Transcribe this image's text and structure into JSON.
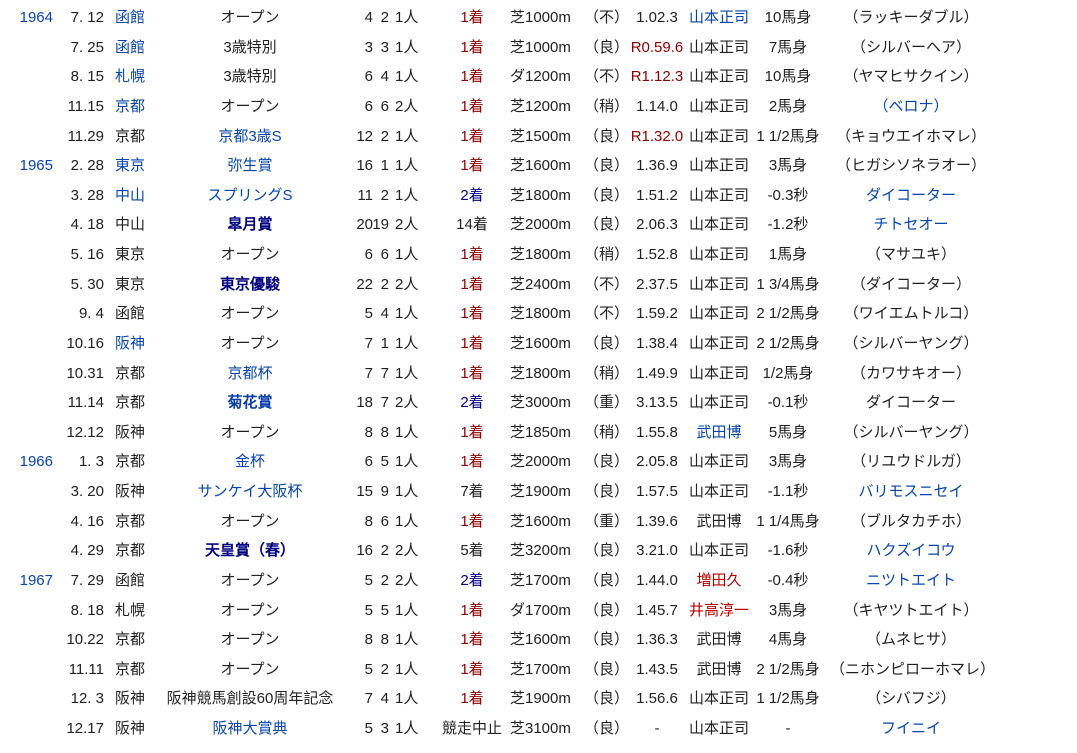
{
  "colors": {
    "link": "#0645ad",
    "redlink": "#ba0000",
    "win": "#8b0000",
    "second": "#000080",
    "record": "#8b0000",
    "g1": "#000080"
  },
  "rows": [
    {
      "year": "1964",
      "date": "7. 12",
      "venue": "函館",
      "race": "オープン",
      "field": "4",
      "gate": "2",
      "pop": "1人",
      "place": "1着",
      "surface": "芝1000m",
      "cond": "（不）",
      "time": "1.02.3",
      "jockey": "山本正司",
      "margin": "10馬身",
      "opponent": "（ラッキーダブル）",
      "links": [
        "year",
        "venue",
        "jockey"
      ]
    },
    {
      "year": "",
      "date": "7. 25",
      "venue": "函館",
      "race": "3歳特別",
      "field": "3",
      "gate": "3",
      "pop": "1人",
      "place": "1着",
      "surface": "芝1000m",
      "cond": "（良）",
      "time": "R0.59.6",
      "jockey": "山本正司",
      "margin": "7馬身",
      "opponent": "（シルバーヘア）",
      "links": [
        "venue"
      ],
      "record": true
    },
    {
      "year": "",
      "date": "8. 15",
      "venue": "札幌",
      "race": "3歳特別",
      "field": "6",
      "gate": "4",
      "pop": "1人",
      "place": "1着",
      "surface": "ダ1200m",
      "cond": "（不）",
      "time": "R1.12.3",
      "jockey": "山本正司",
      "margin": "10馬身",
      "opponent": "（ヤマヒサクイン）",
      "links": [
        "venue"
      ],
      "record": true
    },
    {
      "year": "",
      "date": "11.15",
      "venue": "京都",
      "race": "オープン",
      "field": "6",
      "gate": "6",
      "pop": "2人",
      "place": "1着",
      "surface": "芝1200m",
      "cond": "（稍）",
      "time": "1.14.0",
      "jockey": "山本正司",
      "margin": "2馬身",
      "opponent": "（ベロナ）",
      "links": [
        "venue",
        "opponent"
      ]
    },
    {
      "year": "",
      "date": "11.29",
      "venue": "京都",
      "race": "京都3歳S",
      "field": "12",
      "gate": "2",
      "pop": "1人",
      "place": "1着",
      "surface": "芝1500m",
      "cond": "（良）",
      "time": "R1.32.0",
      "jockey": "山本正司",
      "margin": "1 1/2馬身",
      "opponent": "（キョウエイホマレ）",
      "links": [
        "race"
      ],
      "record": true
    },
    {
      "year": "1965",
      "date": "2. 28",
      "venue": "東京",
      "race": "弥生賞",
      "field": "16",
      "gate": "1",
      "pop": "1人",
      "place": "1着",
      "surface": "芝1600m",
      "cond": "（良）",
      "time": "1.36.9",
      "jockey": "山本正司",
      "margin": "3馬身",
      "opponent": "（ヒガシソネラオー）",
      "links": [
        "year",
        "venue",
        "race"
      ]
    },
    {
      "year": "",
      "date": "3. 28",
      "venue": "中山",
      "race": "スプリングS",
      "field": "11",
      "gate": "2",
      "pop": "1人",
      "place": "2着",
      "surface": "芝1800m",
      "cond": "（良）",
      "time": "1.51.2",
      "jockey": "山本正司",
      "margin": "-0.3秒",
      "opponent": "ダイコーター",
      "links": [
        "venue",
        "race",
        "opponent"
      ]
    },
    {
      "year": "",
      "date": "4. 18",
      "venue": "中山",
      "race": "皐月賞",
      "field": "20",
      "gate": "19",
      "pop": "2人",
      "place": "14着",
      "surface": "芝2000m",
      "cond": "（良）",
      "time": "2.06.3",
      "jockey": "山本正司",
      "margin": "-1.2秒",
      "opponent": "チトセオー",
      "links": [
        "opponent"
      ],
      "g1": "navy"
    },
    {
      "year": "",
      "date": "5. 16",
      "venue": "東京",
      "race": "オープン",
      "field": "6",
      "gate": "6",
      "pop": "1人",
      "place": "1着",
      "surface": "芝1800m",
      "cond": "（稍）",
      "time": "1.52.8",
      "jockey": "山本正司",
      "margin": "1馬身",
      "opponent": "（マサユキ）",
      "links": []
    },
    {
      "year": "",
      "date": "5. 30",
      "venue": "東京",
      "race": "東京優駿",
      "field": "22",
      "gate": "2",
      "pop": "2人",
      "place": "1着",
      "surface": "芝2400m",
      "cond": "（不）",
      "time": "2.37.5",
      "jockey": "山本正司",
      "margin": "1 3/4馬身",
      "opponent": "（ダイコーター）",
      "links": [],
      "g1": "navy"
    },
    {
      "year": "",
      "date": "9.  4",
      "venue": "函館",
      "race": "オープン",
      "field": "5",
      "gate": "4",
      "pop": "1人",
      "place": "1着",
      "surface": "芝1800m",
      "cond": "（不）",
      "time": "1.59.2",
      "jockey": "山本正司",
      "margin": "2 1/2馬身",
      "opponent": "（ワイエムトルコ）",
      "links": []
    },
    {
      "year": "",
      "date": "10.16",
      "venue": "阪神",
      "race": "オープン",
      "field": "7",
      "gate": "1",
      "pop": "1人",
      "place": "1着",
      "surface": "芝1600m",
      "cond": "（良）",
      "time": "1.38.4",
      "jockey": "山本正司",
      "margin": "2 1/2馬身",
      "opponent": "（シルバーヤング）",
      "links": [
        "venue"
      ]
    },
    {
      "year": "",
      "date": "10.31",
      "venue": "京都",
      "race": "京都杯",
      "field": "7",
      "gate": "7",
      "pop": "1人",
      "place": "1着",
      "surface": "芝1800m",
      "cond": "（稍）",
      "time": "1.49.9",
      "jockey": "山本正司",
      "margin": "1/2馬身",
      "opponent": "（カワサキオー）",
      "links": [
        "race"
      ]
    },
    {
      "year": "",
      "date": "11.14",
      "venue": "京都",
      "race": "菊花賞",
      "field": "18",
      "gate": "7",
      "pop": "2人",
      "place": "2着",
      "surface": "芝3000m",
      "cond": "（重）",
      "time": "3.13.5",
      "jockey": "山本正司",
      "margin": "-0.1秒",
      "opponent": "ダイコーター",
      "links": [],
      "g1": "blue"
    },
    {
      "year": "",
      "date": "12.12",
      "venue": "阪神",
      "race": "オープン",
      "field": "8",
      "gate": "8",
      "pop": "1人",
      "place": "1着",
      "surface": "芝1850m",
      "cond": "（稍）",
      "time": "1.55.8",
      "jockey": "武田博",
      "margin": "5馬身",
      "opponent": "（シルバーヤング）",
      "links": [
        "jockey"
      ]
    },
    {
      "year": "1966",
      "date": "1.  3",
      "venue": "京都",
      "race": "金杯",
      "field": "6",
      "gate": "5",
      "pop": "1人",
      "place": "1着",
      "surface": "芝2000m",
      "cond": "（良）",
      "time": "2.05.8",
      "jockey": "山本正司",
      "margin": "3馬身",
      "opponent": "（リユウドルガ）",
      "links": [
        "year",
        "race"
      ]
    },
    {
      "year": "",
      "date": "3. 20",
      "venue": "阪神",
      "race": "サンケイ大阪杯",
      "field": "15",
      "gate": "9",
      "pop": "1人",
      "place": "7着",
      "surface": "芝1900m",
      "cond": "（良）",
      "time": "1.57.5",
      "jockey": "山本正司",
      "margin": "-1.1秒",
      "opponent": "バリモスニセイ",
      "links": [
        "race",
        "opponent"
      ]
    },
    {
      "year": "",
      "date": "4. 16",
      "venue": "京都",
      "race": "オープン",
      "field": "8",
      "gate": "6",
      "pop": "1人",
      "place": "1着",
      "surface": "芝1600m",
      "cond": "（重）",
      "time": "1.39.6",
      "jockey": "武田博",
      "margin": "1 1/4馬身",
      "opponent": "（ブルタカチホ）",
      "links": []
    },
    {
      "year": "",
      "date": "4. 29",
      "venue": "京都",
      "race": "天皇賞（春）",
      "field": "16",
      "gate": "2",
      "pop": "2人",
      "place": "5着",
      "surface": "芝3200m",
      "cond": "（良）",
      "time": "3.21.0",
      "jockey": "山本正司",
      "margin": "-1.6秒",
      "opponent": "ハクズイコウ",
      "links": [
        "opponent"
      ],
      "g1": "navy"
    },
    {
      "year": "1967",
      "date": "7. 29",
      "venue": "函館",
      "race": "オープン",
      "field": "5",
      "gate": "2",
      "pop": "2人",
      "place": "2着",
      "surface": "芝1700m",
      "cond": "（良）",
      "time": "1.44.0",
      "jockey": "増田久",
      "margin": "-0.4秒",
      "opponent": "ニツトエイト",
      "links": [
        "year",
        "opponent"
      ],
      "redlinks": [
        "jockey"
      ]
    },
    {
      "year": "",
      "date": "8. 18",
      "venue": "札幌",
      "race": "オープン",
      "field": "5",
      "gate": "5",
      "pop": "1人",
      "place": "1着",
      "surface": "ダ1700m",
      "cond": "（良）",
      "time": "1.45.7",
      "jockey": "井高淳一",
      "margin": "3馬身",
      "opponent": "（キヤツトエイト）",
      "links": [],
      "redlinks": [
        "jockey"
      ]
    },
    {
      "year": "",
      "date": "10.22",
      "venue": "京都",
      "race": "オープン",
      "field": "8",
      "gate": "8",
      "pop": "1人",
      "place": "1着",
      "surface": "芝1600m",
      "cond": "（良）",
      "time": "1.36.3",
      "jockey": "武田博",
      "margin": "4馬身",
      "opponent": "（ムネヒサ）",
      "links": []
    },
    {
      "year": "",
      "date": "11.11",
      "venue": "京都",
      "race": "オープン",
      "field": "5",
      "gate": "2",
      "pop": "1人",
      "place": "1着",
      "surface": "芝1700m",
      "cond": "（良）",
      "time": "1.43.5",
      "jockey": "武田博",
      "margin": "2 1/2馬身",
      "opponent": "（ニホンピローホマレ）",
      "links": []
    },
    {
      "year": "",
      "date": "12.  3",
      "venue": "阪神",
      "race": "阪神競馬創設60周年記念",
      "field": "7",
      "gate": "4",
      "pop": "1人",
      "place": "1着",
      "surface": "芝1900m",
      "cond": "（良）",
      "time": "1.56.6",
      "jockey": "山本正司",
      "margin": "1 1/2馬身",
      "opponent": "（シバフジ）",
      "links": []
    },
    {
      "year": "",
      "date": "12.17",
      "venue": "阪神",
      "race": "阪神大賞典",
      "field": "5",
      "gate": "3",
      "pop": "1人",
      "place": "競走中止",
      "surface": "芝3100m",
      "cond": "（良）",
      "time": "-",
      "jockey": "山本正司",
      "margin": "-",
      "opponent": "フイニイ",
      "links": [
        "race",
        "opponent"
      ]
    }
  ]
}
